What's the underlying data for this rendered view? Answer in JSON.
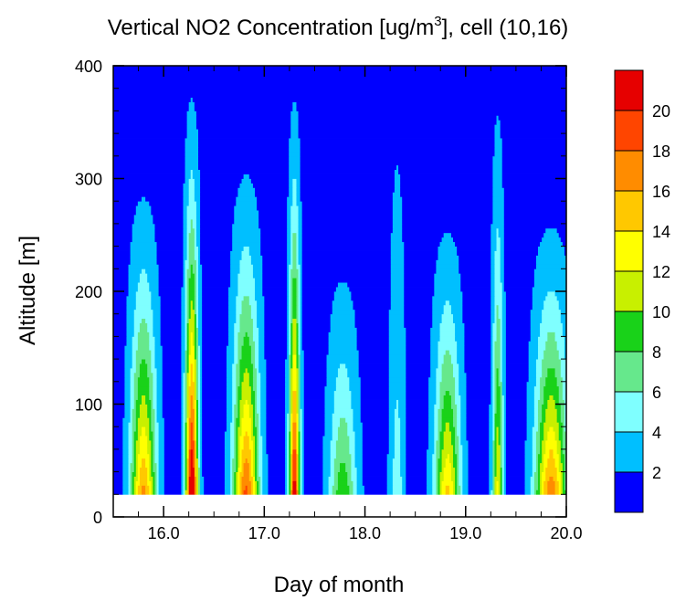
{
  "chart_data": {
    "type": "heatmap",
    "title_prefix": "Vertical NO2 Concentration [ug/m",
    "title_sup": "3",
    "title_suffix": "], cell (10,16)",
    "xlabel": "Day of month",
    "ylabel": "Altitude [m]",
    "xlim": [
      15.5,
      20.0
    ],
    "ylim": [
      0,
      400
    ],
    "data_bottom": 20,
    "xticks": [
      16.0,
      17.0,
      18.0,
      19.0,
      20.0
    ],
    "xtick_labels": [
      "16.0",
      "17.0",
      "18.0",
      "19.0",
      "20.0"
    ],
    "yticks": [
      0,
      100,
      200,
      300,
      400
    ],
    "ytick_labels": [
      "0",
      "100",
      "200",
      "300",
      "400"
    ],
    "colorbar": {
      "levels": [
        2,
        4,
        6,
        8,
        10,
        12,
        14,
        16,
        18,
        20
      ],
      "labels": [
        "2",
        "4",
        "6",
        "8",
        "10",
        "12",
        "14",
        "16",
        "18",
        "20"
      ],
      "colors": [
        "#0000ff",
        "#00bfff",
        "#7fffff",
        "#66e88c",
        "#19d219",
        "#c8f000",
        "#ffff00",
        "#ffc800",
        "#ff8c00",
        "#ff4500",
        "#e60000"
      ]
    },
    "background_level_color": "#0000ff",
    "plumes": [
      {
        "day": 15.8,
        "half_width": 0.12,
        "peak": 15,
        "top": 310
      },
      {
        "day": 16.28,
        "half_width": 0.06,
        "peak": 22,
        "top": 400
      },
      {
        "day": 16.82,
        "half_width": 0.12,
        "peak": 17,
        "top": 330
      },
      {
        "day": 17.3,
        "half_width": 0.05,
        "peak": 20,
        "top": 400
      },
      {
        "day": 17.78,
        "half_width": 0.13,
        "peak": 8,
        "top": 240
      },
      {
        "day": 18.32,
        "half_width": 0.07,
        "peak": 3.5,
        "top": 400
      },
      {
        "day": 18.82,
        "half_width": 0.12,
        "peak": 13,
        "top": 280
      },
      {
        "day": 19.32,
        "half_width": 0.05,
        "peak": 11,
        "top": 400
      },
      {
        "day": 19.85,
        "half_width": 0.15,
        "peak": 16,
        "top": 280
      }
    ],
    "grid": false
  }
}
